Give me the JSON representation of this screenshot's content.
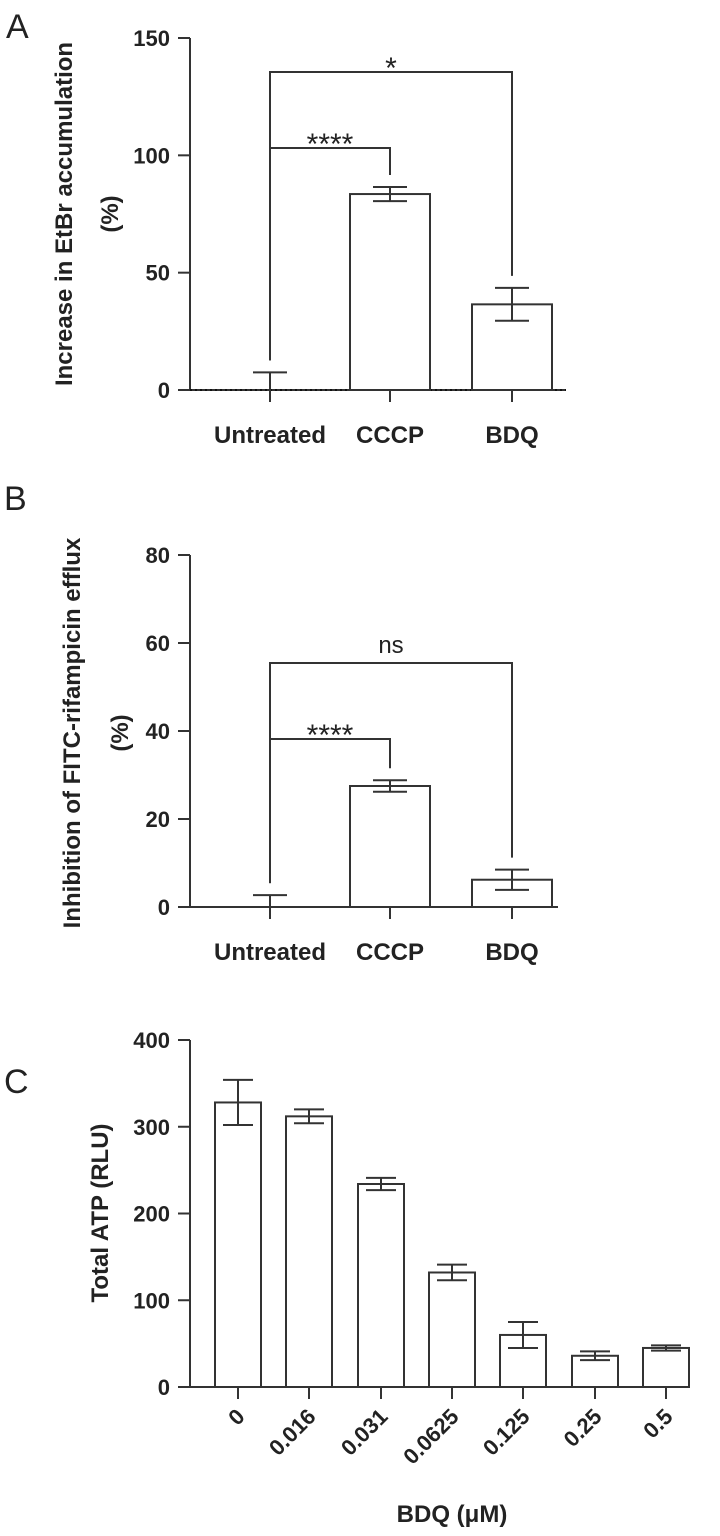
{
  "chart_data": [
    {
      "panel": "A",
      "type": "bar",
      "categories": [
        "Untreated",
        "CCCP",
        "BDQ"
      ],
      "values": [
        0,
        83.5,
        36.5
      ],
      "errors": [
        7.5,
        3,
        7
      ],
      "ylabel": [
        "Increase in  EtBr accumulation",
        "(%)"
      ],
      "ylim": [
        0,
        150
      ],
      "yticks": [
        0,
        50,
        100,
        150
      ],
      "significance": [
        {
          "from": 0,
          "to": 1,
          "label": "****"
        },
        {
          "from": 0,
          "to": 2,
          "label": "*"
        }
      ]
    },
    {
      "panel": "B",
      "type": "bar",
      "categories": [
        "Untreated",
        "CCCP",
        "BDQ"
      ],
      "values": [
        0,
        27.5,
        6.2
      ],
      "errors": [
        2.7,
        1.3,
        2.3
      ],
      "ylabel": [
        "Inhibition of FITC-rifampicin efflux",
        "(%)"
      ],
      "ylim": [
        0,
        80
      ],
      "yticks": [
        0,
        20,
        40,
        60,
        80
      ],
      "significance": [
        {
          "from": 0,
          "to": 1,
          "label": "****"
        },
        {
          "from": 0,
          "to": 2,
          "label": "ns"
        }
      ]
    },
    {
      "panel": "C",
      "type": "bar",
      "categories": [
        "0",
        "0.016",
        "0.031",
        "0.0625",
        "0.125",
        "0.25",
        "0.5"
      ],
      "values": [
        328,
        312,
        234,
        132,
        60,
        36,
        45
      ],
      "errors": [
        26,
        8,
        7,
        9,
        15,
        5,
        3
      ],
      "ylabel": [
        "Total  ATP (RLU)"
      ],
      "xlabel": "BDQ (μM)",
      "ylim": [
        0,
        400
      ],
      "yticks": [
        0,
        100,
        200,
        300,
        400
      ]
    }
  ]
}
